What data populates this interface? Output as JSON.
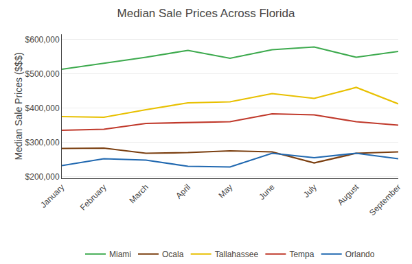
{
  "chart_data": {
    "type": "line",
    "title": "Median Sale Prices Across Florida",
    "ylabel": "Median Sale Prices ($$$)",
    "categories": [
      "January",
      "February",
      "March",
      "April",
      "May",
      "June",
      "July",
      "August",
      "September"
    ],
    "series": [
      {
        "name": "Miami",
        "color": "#3daa4e",
        "values": [
          513000,
          530000,
          548000,
          568000,
          545000,
          570000,
          578000,
          548000,
          565000
        ]
      },
      {
        "name": "Ocala",
        "color": "#7b3f10",
        "values": [
          282000,
          283000,
          268000,
          270000,
          275000,
          272000,
          240000,
          268000,
          272000
        ]
      },
      {
        "name": "Tallahassee",
        "color": "#e8c000",
        "values": [
          375000,
          373000,
          395000,
          415000,
          418000,
          442000,
          428000,
          460000,
          412000
        ]
      },
      {
        "name": "Tempa",
        "color": "#c0392b",
        "values": [
          335000,
          338000,
          355000,
          358000,
          360000,
          383000,
          380000,
          360000,
          350000
        ]
      },
      {
        "name": "Orlando",
        "color": "#2068b0",
        "values": [
          232000,
          252000,
          248000,
          230000,
          228000,
          268000,
          255000,
          268000,
          252000
        ]
      }
    ],
    "ylim": [
      195000,
      615000
    ],
    "yticks": [
      {
        "value": 200000,
        "label": "$200,000"
      },
      {
        "value": 300000,
        "label": "$300,000"
      },
      {
        "value": 400000,
        "label": "$400,000"
      },
      {
        "value": 500000,
        "label": "$500,000"
      },
      {
        "value": 600000,
        "label": "$600,000"
      }
    ],
    "grid": true,
    "legend": "bottom"
  }
}
